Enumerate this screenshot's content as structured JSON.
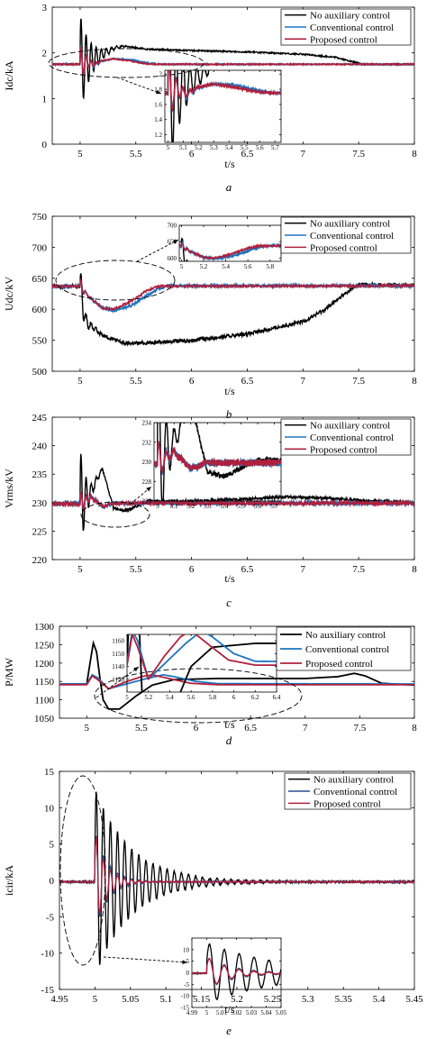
{
  "chart_data": [
    {
      "id": "a",
      "type": "line",
      "panel_label": "a",
      "xlabel": "t/s",
      "ylabel": "Idc/kA",
      "xlim": [
        4.75,
        8
      ],
      "ylim": [
        0,
        3
      ],
      "xticks": [
        5,
        5.5,
        6,
        6.5,
        7,
        7.5,
        8
      ],
      "yticks": [
        0,
        1,
        2,
        3
      ],
      "series": [
        {
          "name": "No auxiliary control",
          "color": "#000000",
          "width": 1.4,
          "noise": 0.015,
          "osc": {
            "amp": 1.1,
            "freq": 22,
            "decay": 0.09,
            "start": 5.0
          },
          "points": [
            [
              4.75,
              1.75
            ],
            [
              5.0,
              1.75
            ],
            [
              5.15,
              1.9
            ],
            [
              5.3,
              2.1
            ],
            [
              5.4,
              2.15
            ],
            [
              5.6,
              2.08
            ],
            [
              6.0,
              2.05
            ],
            [
              6.5,
              2.02
            ],
            [
              7.0,
              1.97
            ],
            [
              7.3,
              1.9
            ],
            [
              7.45,
              1.8
            ],
            [
              7.55,
              1.75
            ],
            [
              8.0,
              1.75
            ]
          ]
        },
        {
          "name": "Conventional control",
          "color": "#1e73be",
          "width": 1.6,
          "noise": 0.012,
          "osc": {
            "amp": 0.45,
            "freq": 22,
            "decay": 0.05,
            "start": 5.0
          },
          "points": [
            [
              4.75,
              1.75
            ],
            [
              5.0,
              1.75
            ],
            [
              5.07,
              1.8
            ],
            [
              5.12,
              1.72
            ],
            [
              5.2,
              1.82
            ],
            [
              5.3,
              1.87
            ],
            [
              5.45,
              1.85
            ],
            [
              5.6,
              1.78
            ],
            [
              5.7,
              1.75
            ],
            [
              8.0,
              1.75
            ]
          ]
        },
        {
          "name": "Proposed control",
          "color": "#b0203c",
          "width": 1.6,
          "noise": 0.012,
          "osc": {
            "amp": 0.45,
            "freq": 22,
            "decay": 0.05,
            "start": 5.0
          },
          "points": [
            [
              4.75,
              1.75
            ],
            [
              5.0,
              1.75
            ],
            [
              5.07,
              1.8
            ],
            [
              5.12,
              1.74
            ],
            [
              5.2,
              1.83
            ],
            [
              5.3,
              1.87
            ],
            [
              5.45,
              1.82
            ],
            [
              5.6,
              1.76
            ],
            [
              5.7,
              1.75
            ],
            [
              8.0,
              1.75
            ]
          ]
        }
      ],
      "inset": {
        "xlim": [
          4.98,
          5.74
        ],
        "ylim": [
          1.1,
          2.05
        ],
        "xticks": [
          5,
          5.1,
          5.2,
          5.3,
          5.4,
          5.5,
          5.6,
          5.7
        ],
        "yticks": [
          1.2,
          1.4,
          1.6,
          1.8,
          2
        ]
      }
    },
    {
      "id": "b",
      "type": "line",
      "panel_label": "b",
      "xlabel": "t/s",
      "ylabel": "Udc/kV",
      "xlim": [
        4.75,
        8
      ],
      "ylim": [
        500,
        750
      ],
      "xticks": [
        5,
        5.5,
        6,
        6.5,
        7,
        7.5,
        8
      ],
      "yticks": [
        500,
        550,
        600,
        650,
        700,
        750
      ],
      "series": [
        {
          "name": "No auxiliary control",
          "color": "#000000",
          "width": 1.4,
          "noise": 3,
          "osc": {
            "amp": 35,
            "freq": 22,
            "decay": 0.05,
            "start": 5.0
          },
          "points": [
            [
              4.75,
              637
            ],
            [
              5.0,
              637
            ],
            [
              5.05,
              580
            ],
            [
              5.2,
              558
            ],
            [
              5.4,
              545
            ],
            [
              5.6,
              546
            ],
            [
              6.0,
              550
            ],
            [
              6.5,
              560
            ],
            [
              7.0,
              580
            ],
            [
              7.2,
              600
            ],
            [
              7.4,
              628
            ],
            [
              7.5,
              640
            ],
            [
              8.0,
              638
            ]
          ]
        },
        {
          "name": "Conventional control",
          "color": "#1e73be",
          "width": 1.6,
          "noise": 2,
          "osc": {
            "amp": 12,
            "freq": 22,
            "decay": 0.04,
            "start": 5.0
          },
          "points": [
            [
              4.75,
              637
            ],
            [
              5.0,
              637
            ],
            [
              5.08,
              620
            ],
            [
              5.2,
              602
            ],
            [
              5.3,
              598
            ],
            [
              5.45,
              605
            ],
            [
              5.6,
              622
            ],
            [
              5.7,
              633
            ],
            [
              5.8,
              638
            ],
            [
              8.0,
              638
            ]
          ]
        },
        {
          "name": "Proposed control",
          "color": "#b0203c",
          "width": 1.3,
          "noise": 2,
          "osc": {
            "amp": 12,
            "freq": 22,
            "decay": 0.04,
            "start": 5.0
          },
          "points": [
            [
              4.75,
              637
            ],
            [
              5.0,
              637
            ],
            [
              5.08,
              620
            ],
            [
              5.2,
              602
            ],
            [
              5.3,
              600
            ],
            [
              5.45,
              612
            ],
            [
              5.6,
              630
            ],
            [
              5.7,
              637
            ],
            [
              8.0,
              638
            ]
          ]
        }
      ],
      "inset": {
        "xlim": [
          4.98,
          5.9
        ],
        "ylim": [
          590,
          700
        ],
        "xticks": [
          5,
          5.2,
          5.4,
          5.6,
          5.8
        ],
        "yticks": [
          600,
          650,
          700
        ]
      }
    },
    {
      "id": "c",
      "type": "line",
      "panel_label": "c",
      "xlabel": "t/s",
      "ylabel": "Vrms/kV",
      "xlim": [
        4.75,
        8
      ],
      "ylim": [
        220,
        245
      ],
      "xticks": [
        5,
        5.5,
        6,
        6.5,
        7,
        7.5,
        8
      ],
      "yticks": [
        220,
        225,
        230,
        235,
        240,
        245
      ],
      "series": [
        {
          "name": "No auxiliary control",
          "color": "#000000",
          "width": 1.4,
          "noise": 0.25,
          "osc": {
            "amp": 10,
            "freq": 22,
            "decay": 0.05,
            "start": 5.0
          },
          "points": [
            [
              4.75,
              229.8
            ],
            [
              5.0,
              229.8
            ],
            [
              5.1,
              232
            ],
            [
              5.2,
              236
            ],
            [
              5.3,
              229
            ],
            [
              5.4,
              228.5
            ],
            [
              5.6,
              230.2
            ],
            [
              6.0,
              230.3
            ],
            [
              6.5,
              230.6
            ],
            [
              6.8,
              231
            ],
            [
              7.2,
              230.8
            ],
            [
              7.6,
              230.3
            ],
            [
              8.0,
              230
            ]
          ]
        },
        {
          "name": "Conventional control",
          "color": "#1e73be",
          "width": 1.6,
          "noise": 0.35,
          "osc": {
            "amp": 2.5,
            "freq": 22,
            "decay": 0.04,
            "start": 5.0
          },
          "points": [
            [
              4.75,
              229.8
            ],
            [
              5.0,
              229.8
            ],
            [
              5.1,
              231
            ],
            [
              5.2,
              229.3
            ],
            [
              5.3,
              229.9
            ],
            [
              8.0,
              229.9
            ]
          ]
        },
        {
          "name": "Proposed control",
          "color": "#b0203c",
          "width": 1.6,
          "noise": 0.35,
          "osc": {
            "amp": 2.5,
            "freq": 22,
            "decay": 0.04,
            "start": 5.0
          },
          "points": [
            [
              4.75,
              229.8
            ],
            [
              5.0,
              229.8
            ],
            [
              5.1,
              231
            ],
            [
              5.2,
              229.3
            ],
            [
              5.3,
              229.9
            ],
            [
              8.0,
              229.9
            ]
          ]
        }
      ],
      "inset": {
        "xlim": [
          4.98,
          5.74
        ],
        "ylim": [
          226,
          234
        ],
        "xticks": [
          5,
          5.1,
          5.2,
          5.3,
          5.4,
          5.5,
          5.6,
          5.7
        ],
        "yticks": [
          226,
          228,
          230,
          232,
          234
        ]
      }
    },
    {
      "id": "d",
      "type": "line",
      "panel_label": "d",
      "xlabel": "t/s",
      "ylabel": "P/MW",
      "xlim": [
        4.75,
        8
      ],
      "ylim": [
        1050,
        1300
      ],
      "xticks": [
        5,
        5.5,
        6,
        6.5,
        7,
        7.5,
        8
      ],
      "yticks": [
        1050,
        1100,
        1150,
        1200,
        1250,
        1300
      ],
      "series": [
        {
          "name": "No auxiliary control",
          "color": "#000000",
          "width": 1.8,
          "noise": 0,
          "osc": {
            "amp": 0,
            "freq": 0,
            "decay": 1,
            "start": 5.0
          },
          "points": [
            [
              4.75,
              1143
            ],
            [
              5.0,
              1143
            ],
            [
              5.03,
              1200
            ],
            [
              5.06,
              1255
            ],
            [
              5.09,
              1230
            ],
            [
              5.12,
              1160
            ],
            [
              5.15,
              1100
            ],
            [
              5.2,
              1075
            ],
            [
              5.3,
              1075
            ],
            [
              5.45,
              1110
            ],
            [
              5.6,
              1140
            ],
            [
              5.8,
              1155
            ],
            [
              6.2,
              1158
            ],
            [
              7.0,
              1158
            ],
            [
              7.3,
              1163
            ],
            [
              7.45,
              1172
            ],
            [
              7.55,
              1165
            ],
            [
              7.7,
              1145
            ],
            [
              8.0,
              1140
            ]
          ]
        },
        {
          "name": "Conventional control",
          "color": "#1e73be",
          "width": 1.8,
          "noise": 0,
          "osc": {
            "amp": 0,
            "freq": 0,
            "decay": 1,
            "start": 5.0
          },
          "points": [
            [
              4.75,
              1143
            ],
            [
              5.0,
              1143
            ],
            [
              5.05,
              1168
            ],
            [
              5.1,
              1160
            ],
            [
              5.2,
              1130
            ],
            [
              5.35,
              1142
            ],
            [
              5.55,
              1158
            ],
            [
              5.7,
              1168
            ],
            [
              5.8,
              1163
            ],
            [
              6.0,
              1150
            ],
            [
              6.2,
              1144
            ],
            [
              8.0,
              1143
            ]
          ]
        },
        {
          "name": "Proposed control",
          "color": "#b0203c",
          "width": 1.8,
          "noise": 0,
          "osc": {
            "amp": 0,
            "freq": 0,
            "decay": 1,
            "start": 5.0
          },
          "points": [
            [
              4.75,
              1141
            ],
            [
              5.0,
              1141
            ],
            [
              5.05,
              1165
            ],
            [
              5.1,
              1155
            ],
            [
              5.2,
              1130
            ],
            [
              5.35,
              1148
            ],
            [
              5.5,
              1163
            ],
            [
              5.6,
              1168
            ],
            [
              5.75,
              1158
            ],
            [
              5.95,
              1145
            ],
            [
              6.2,
              1141
            ],
            [
              8.0,
              1141
            ]
          ]
        }
      ],
      "inset": {
        "xlim": [
          5.0,
          6.4
        ],
        "ylim": [
          1120,
          1165
        ],
        "xticks": [
          5,
          5.2,
          5.4,
          5.6,
          5.8,
          6,
          6.2,
          6.4
        ],
        "yticks": [
          1130,
          1140,
          1150,
          1160
        ]
      }
    },
    {
      "id": "e",
      "type": "line",
      "panel_label": "e",
      "xlabel": "t/s",
      "ylabel": "icir/kA",
      "xlim": [
        4.95,
        5.45
      ],
      "ylim": [
        -15,
        15
      ],
      "xticks": [
        4.95,
        5,
        5.05,
        5.1,
        5.15,
        5.2,
        5.25,
        5.3,
        5.35,
        5.4,
        5.45
      ],
      "yticks": [
        -15,
        -10,
        -5,
        0,
        5,
        10,
        15
      ],
      "series": [
        {
          "name": "No auxiliary control",
          "color": "#000000",
          "width": 1.3,
          "noise": 0.15,
          "osc": {
            "amp": 13,
            "freq": 100,
            "decay": 0.05,
            "start": 5.0
          },
          "points": [
            [
              4.95,
              -0.2
            ],
            [
              5.45,
              -0.2
            ]
          ]
        },
        {
          "name": "Conventional control",
          "color": "#2a4d8f",
          "width": 1.2,
          "noise": 0.1,
          "osc": {
            "amp": 7,
            "freq": 100,
            "decay": 0.018,
            "start": 5.0
          },
          "points": [
            [
              4.95,
              -0.2
            ],
            [
              5.45,
              -0.2
            ]
          ]
        },
        {
          "name": "Proposed control",
          "color": "#b0203c",
          "width": 1.2,
          "noise": 0.1,
          "osc": {
            "amp": 7,
            "freq": 100,
            "decay": 0.015,
            "start": 5.0
          },
          "points": [
            [
              4.95,
              -0.2
            ],
            [
              5.45,
              -0.2
            ]
          ]
        }
      ],
      "inset": {
        "xlim": [
          4.99,
          5.05
        ],
        "ylim": [
          -15,
          15
        ],
        "xticks": [
          4.99,
          5,
          5.01,
          5.02,
          5.03,
          5.04,
          5.05
        ],
        "yticks": [
          -15,
          -10,
          -5,
          0,
          5,
          10
        ]
      }
    }
  ]
}
